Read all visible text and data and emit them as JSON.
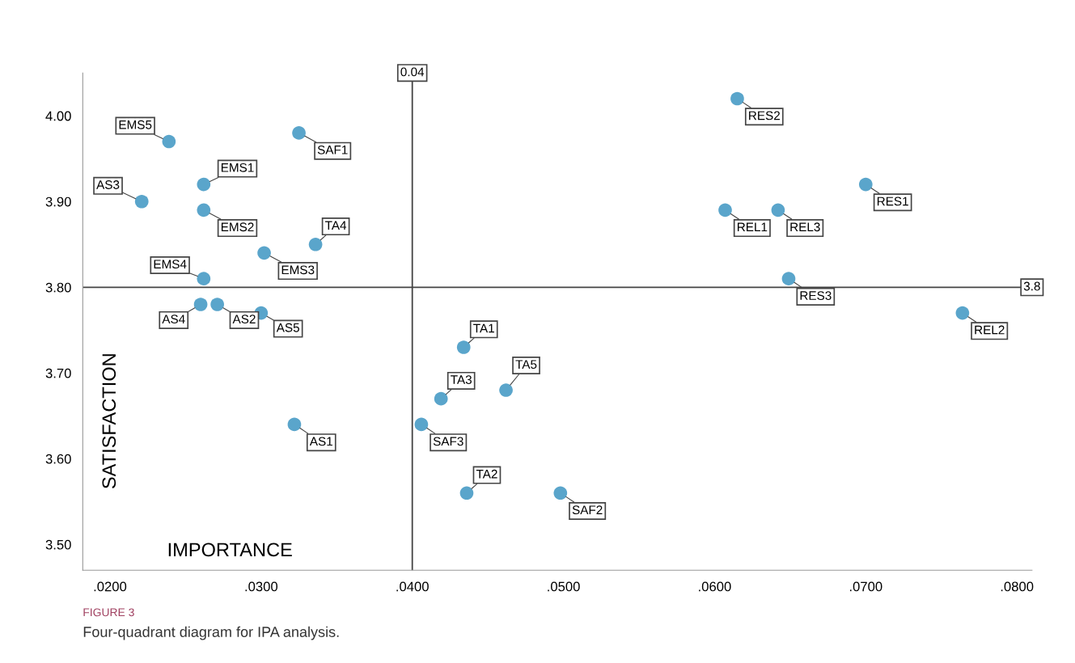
{
  "chart_data": {
    "type": "scatter",
    "xlabel": "IMPORTANCE",
    "ylabel": "SATISFACTION",
    "x": [
      0.0239,
      0.0221,
      0.0262,
      0.0262,
      0.0325,
      0.0336,
      0.0302,
      0.0262,
      0.026,
      0.0271,
      0.03,
      0.0322,
      0.0406,
      0.0419,
      0.0434,
      0.0462,
      0.0436,
      0.0498,
      0.0615,
      0.07,
      0.0607,
      0.0642,
      0.0649,
      0.0764
    ],
    "series": [
      {
        "color": "#5aa5cb",
        "values": [
          3.97,
          3.9,
          3.92,
          3.89,
          3.98,
          3.85,
          3.84,
          3.81,
          3.78,
          3.78,
          3.77,
          3.64,
          3.64,
          3.67,
          3.73,
          3.68,
          3.56,
          3.56,
          4.02,
          3.92,
          3.89,
          3.89,
          3.81,
          3.77
        ]
      }
    ],
    "annotations": [
      {
        "text": "EMS5",
        "x": 0.0239,
        "y": 3.97
      },
      {
        "text": "AS3",
        "x": 0.0221,
        "y": 3.9
      },
      {
        "text": "EMS1",
        "x": 0.0262,
        "y": 3.92
      },
      {
        "text": "EMS2",
        "x": 0.0262,
        "y": 3.89
      },
      {
        "text": "SAF1",
        "x": 0.0325,
        "y": 3.98
      },
      {
        "text": "TA4",
        "x": 0.0336,
        "y": 3.85
      },
      {
        "text": "EMS3",
        "x": 0.0302,
        "y": 3.84
      },
      {
        "text": "EMS4",
        "x": 0.0262,
        "y": 3.81
      },
      {
        "text": "AS4",
        "x": 0.026,
        "y": 3.78
      },
      {
        "text": "AS2",
        "x": 0.0271,
        "y": 3.78
      },
      {
        "text": "AS5",
        "x": 0.03,
        "y": 3.77
      },
      {
        "text": "AS1",
        "x": 0.0322,
        "y": 3.64
      },
      {
        "text": "SAF3",
        "x": 0.0406,
        "y": 3.64
      },
      {
        "text": "TA3",
        "x": 0.0419,
        "y": 3.67
      },
      {
        "text": "TA1",
        "x": 0.0434,
        "y": 3.73
      },
      {
        "text": "TA5",
        "x": 0.0462,
        "y": 3.68
      },
      {
        "text": "TA2",
        "x": 0.0436,
        "y": 3.56
      },
      {
        "text": "SAF2",
        "x": 0.0498,
        "y": 3.56
      },
      {
        "text": "RES2",
        "x": 0.0615,
        "y": 4.02
      },
      {
        "text": "RES1",
        "x": 0.07,
        "y": 3.92
      },
      {
        "text": "REL1",
        "x": 0.0607,
        "y": 3.89
      },
      {
        "text": "REL3",
        "x": 0.0642,
        "y": 3.89
      },
      {
        "text": "RES3",
        "x": 0.0649,
        "y": 3.81
      },
      {
        "text": "REL2",
        "x": 0.0764,
        "y": 3.77
      },
      "FIGURE 3",
      "Four-quadrant diagram for IPA analysis."
    ],
    "xlim": [
      0.0182,
      0.081
    ],
    "ylim": [
      3.47,
      4.05
    ],
    "xticks": [
      {
        "value": 0.02,
        "label": ".0200"
      },
      {
        "value": 0.03,
        "label": ".0300"
      },
      {
        "value": 0.04,
        "label": ".0400"
      },
      {
        "value": 0.05,
        "label": ".0500"
      },
      {
        "value": 0.06,
        "label": ".0600"
      },
      {
        "value": 0.07,
        "label": ".0700"
      },
      {
        "value": 0.08,
        "label": ".0800"
      }
    ],
    "yticks": [
      {
        "value": 3.5,
        "label": "3.50"
      },
      {
        "value": 3.6,
        "label": "3.60"
      },
      {
        "value": 3.7,
        "label": "3.70"
      },
      {
        "value": 3.8,
        "label": "3.80"
      },
      {
        "value": 3.9,
        "label": "3.90"
      },
      {
        "value": 4.0,
        "label": "4.00"
      }
    ],
    "ref_lines": [
      {
        "axis": "x",
        "value": 0.04,
        "label": "0.04",
        "color": "#444444"
      },
      {
        "axis": "y",
        "value": 3.8,
        "label": "3.8",
        "color": "#444444"
      }
    ],
    "grid": false,
    "marker": "circle"
  }
}
